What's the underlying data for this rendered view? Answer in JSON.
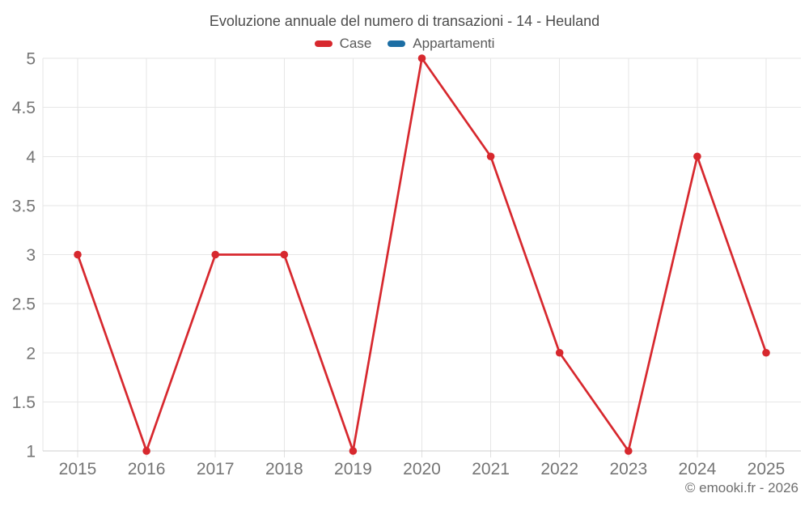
{
  "header": {
    "title": "Evoluzione annuale del numero di transazioni - 14 - Heuland"
  },
  "footer": {
    "credit": "© emooki.fr - 2026"
  },
  "colors": {
    "case_red": "#d7282e",
    "appartamenti_blue": "#1c6ea4",
    "gridline": "#e6e6e6",
    "axis_line": "#cfcfcf",
    "axis_label": "#757575",
    "title_text": "#4d4d4d"
  },
  "chart_data": {
    "type": "line",
    "title": "Evoluzione annuale del numero di transazioni - 14 - Heuland",
    "xlabel": "",
    "ylabel": "",
    "categories": [
      "2015",
      "2016",
      "2017",
      "2018",
      "2019",
      "2020",
      "2021",
      "2022",
      "2023",
      "2024",
      "2025"
    ],
    "series": [
      {
        "name": "Case",
        "color": "#d7282e",
        "values": [
          3,
          1,
          3,
          3,
          1,
          5,
          4,
          2,
          1,
          4,
          2
        ]
      },
      {
        "name": "Appartamenti",
        "color": "#1c6ea4",
        "values": []
      }
    ],
    "ylim": [
      1,
      5
    ],
    "yticks": [
      "1",
      "1.5",
      "2",
      "2.5",
      "3",
      "3.5",
      "4",
      "4.5",
      "5"
    ],
    "grid": true,
    "legend_position": "top",
    "markers": true
  }
}
